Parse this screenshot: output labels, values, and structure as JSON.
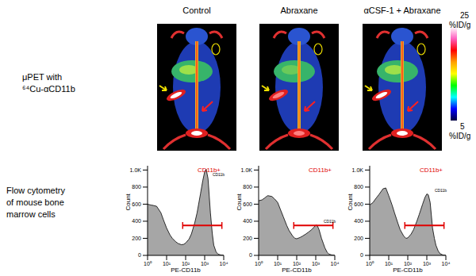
{
  "columns": [
    "Control",
    "Abraxane",
    "αCSF-1 + Abraxane"
  ],
  "row_labels": [
    [
      "μPET with",
      "⁶⁴Cu-αCD11b"
    ],
    [
      "Flow cytometry",
      "of mouse bone",
      "marrow cells"
    ]
  ],
  "colorbar": {
    "max": 25,
    "min": 5,
    "unit": "%ID/g"
  },
  "chart_data": [
    {
      "type": "area",
      "x": [
        1,
        1.5,
        2,
        3,
        5,
        7,
        10,
        15,
        20,
        30,
        40,
        60,
        80,
        100,
        150,
        200,
        300,
        400,
        600,
        800,
        1000,
        1200,
        1500,
        2000,
        2500,
        3000,
        4000,
        5000,
        7000,
        10000
      ],
      "values": [
        600,
        590,
        585,
        575,
        500,
        410,
        320,
        240,
        200,
        160,
        140,
        125,
        130,
        145,
        190,
        250,
        380,
        500,
        720,
        880,
        980,
        1010,
        900,
        500,
        260,
        120,
        40,
        15,
        5,
        0
      ],
      "color": "#a6a6a6",
      "log": "x",
      "xlim": [
        1,
        10000
      ],
      "xticks": [
        {
          "value": 1,
          "label": "10⁰"
        },
        {
          "value": 10,
          "label": "10¹"
        },
        {
          "value": 100,
          "label": "10²"
        },
        {
          "value": 1000,
          "label": "10³"
        },
        {
          "value": 10000,
          "label": "10⁴"
        }
      ],
      "ylim": [
        0,
        1050
      ],
      "yticks": [
        0,
        200,
        400,
        600,
        800,
        {
          "value": 1000,
          "label": "1.0K"
        }
      ],
      "x_label": "PE-CD11b",
      "y_label": "Count",
      "annotations": [
        {
          "text": "CD11b+",
          "x": [
            70,
            8000
          ],
          "y": 350,
          "color": "#e00000"
        },
        {
          "text": "CD11b",
          "x": 1600,
          "y": 950
        }
      ]
    },
    {
      "type": "area",
      "x": [
        1,
        1.5,
        2,
        3,
        5,
        7,
        10,
        15,
        20,
        30,
        40,
        60,
        80,
        100,
        150,
        200,
        300,
        400,
        600,
        800,
        1000,
        1200,
        1500,
        2000,
        2500,
        3000,
        4000,
        5000,
        7000,
        10000
      ],
      "values": [
        640,
        650,
        670,
        700,
        690,
        660,
        620,
        520,
        450,
        350,
        290,
        230,
        200,
        195,
        210,
        225,
        250,
        270,
        300,
        330,
        355,
        350,
        300,
        200,
        140,
        90,
        35,
        15,
        5,
        0
      ],
      "color": "#a6a6a6",
      "log": "x",
      "xlim": [
        1,
        10000
      ],
      "xticks": [
        {
          "value": 1,
          "label": "10⁰"
        },
        {
          "value": 10,
          "label": "10¹"
        },
        {
          "value": 100,
          "label": "10²"
        },
        {
          "value": 1000,
          "label": "10³"
        },
        {
          "value": 10000,
          "label": "10⁴"
        }
      ],
      "ylim": [
        0,
        1050
      ],
      "yticks": [
        0,
        200,
        400,
        600,
        800,
        {
          "value": 1000,
          "label": "1.0K"
        }
      ],
      "x_label": "PE-CD11b",
      "y_label": "Count",
      "annotations": [
        {
          "text": "CD11b+",
          "x": [
            70,
            8000
          ],
          "y": 350,
          "color": "#e00000"
        },
        {
          "text": "CD11b",
          "x": 1600,
          "y": 400
        }
      ]
    },
    {
      "type": "area",
      "x": [
        1,
        1.5,
        2,
        3,
        5,
        7,
        10,
        15,
        20,
        30,
        40,
        60,
        80,
        100,
        150,
        200,
        300,
        400,
        600,
        800,
        1000,
        1200,
        1500,
        2000,
        2500,
        3000,
        4000,
        5000,
        7000,
        10000
      ],
      "values": [
        590,
        620,
        660,
        710,
        780,
        790,
        700,
        590,
        500,
        380,
        300,
        230,
        200,
        205,
        250,
        300,
        400,
        480,
        600,
        680,
        720,
        710,
        620,
        320,
        200,
        120,
        50,
        20,
        5,
        0
      ],
      "color": "#a6a6a6",
      "log": "x",
      "xlim": [
        1,
        10000
      ],
      "xticks": [
        {
          "value": 1,
          "label": "10⁰"
        },
        {
          "value": 10,
          "label": "10¹"
        },
        {
          "value": 100,
          "label": "10²"
        },
        {
          "value": 1000,
          "label": "10³"
        },
        {
          "value": 10000,
          "label": "10⁴"
        }
      ],
      "ylim": [
        0,
        1050
      ],
      "yticks": [
        0,
        200,
        400,
        600,
        800,
        {
          "value": 1000,
          "label": "1.0K"
        }
      ],
      "x_label": "PE-CD11b",
      "y_label": "Count",
      "annotations": [
        {
          "text": "CD11b+",
          "x": [
            70,
            8000
          ],
          "y": 350,
          "color": "#e00000"
        },
        {
          "text": "CD11b",
          "x": 1600,
          "y": 760
        }
      ]
    }
  ]
}
